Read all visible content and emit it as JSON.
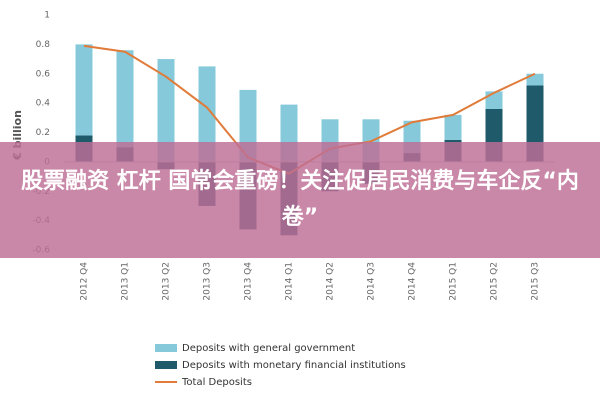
{
  "chart_data": {
    "type": "stacked-bar-line",
    "y_label": "€ billion",
    "categories": [
      "2012 Q4",
      "2013 Q1",
      "2013 Q2",
      "2013 Q3",
      "2013 Q4",
      "2014 Q1",
      "2014 Q2",
      "2014 Q3",
      "2014 Q4",
      "2015 Q1",
      "2015 Q2",
      "2015 Q3"
    ],
    "series": [
      {
        "name": "Deposits with general government",
        "color": "#86c9da",
        "kind": "bar",
        "values": [
          0.62,
          0.66,
          0.7,
          0.65,
          0.49,
          0.39,
          0.29,
          0.29,
          0.22,
          0.17,
          0.12,
          0.08
        ]
      },
      {
        "name": "Deposits with monetary financial institutions",
        "color": "#1f5a6b",
        "kind": "bar",
        "values": [
          0.18,
          0.1,
          -0.05,
          -0.3,
          -0.46,
          -0.5,
          -0.2,
          -0.15,
          0.06,
          0.15,
          0.36,
          0.52
        ]
      },
      {
        "name": "Total Deposits",
        "color": "#e07b39",
        "kind": "line",
        "values": [
          0.79,
          0.75,
          0.58,
          0.37,
          0.03,
          -0.08,
          0.09,
          0.14,
          0.27,
          0.32,
          0.47,
          0.6
        ]
      }
    ],
    "ylim": [
      -0.6,
      1
    ],
    "yticks": [
      -0.6,
      -0.4,
      -0.2,
      0,
      0.2,
      0.4,
      0.6,
      0.8,
      1
    ],
    "grid": false
  },
  "banner": {
    "text": "股票融资 杠杆 国常会重磅！关注促居民消费与车企反“内卷”"
  }
}
